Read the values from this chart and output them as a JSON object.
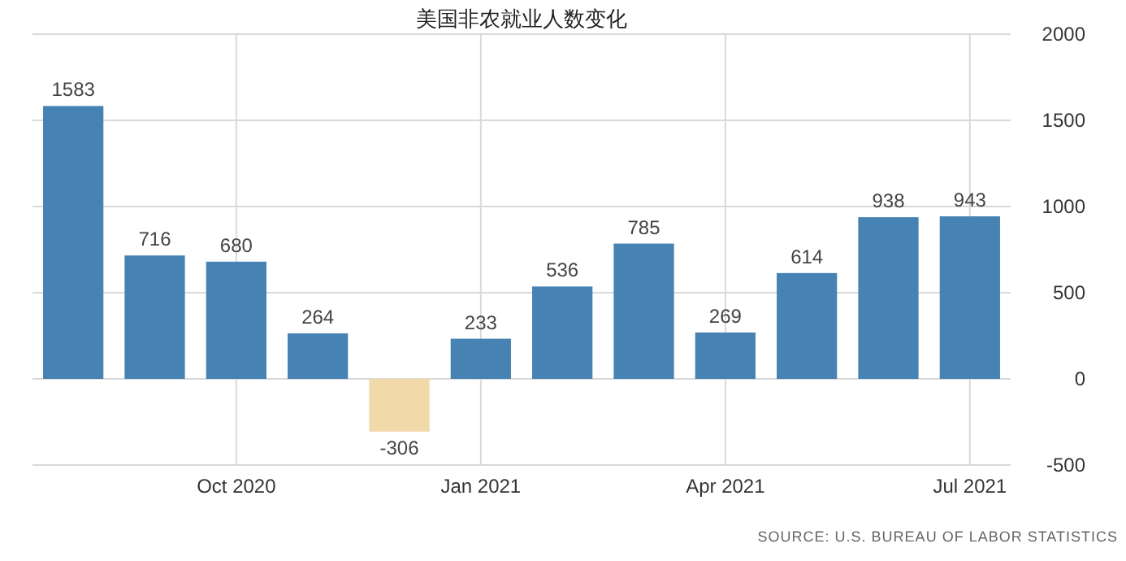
{
  "chart_data": {
    "type": "bar",
    "title": "美国非农就业人数变化",
    "categories": [
      null,
      null,
      "Oct 2020",
      null,
      null,
      "Jan 2021",
      null,
      null,
      "Apr 2021",
      null,
      null,
      "Jul 2021"
    ],
    "values": [
      1583,
      716,
      680,
      264,
      -306,
      233,
      536,
      785,
      269,
      614,
      938,
      943
    ],
    "colors": [
      "#4682b4",
      "#4682b4",
      "#4682b4",
      "#4682b4",
      "#f2d9a9",
      "#4682b4",
      "#4682b4",
      "#4682b4",
      "#4682b4",
      "#4682b4",
      "#4682b4",
      "#4682b4"
    ],
    "ylim": [
      -500,
      2000
    ],
    "yticks": [
      -500,
      0,
      500,
      1000,
      1500,
      2000
    ],
    "grid": true,
    "data_labels": true,
    "annotations": [
      "SOURCE: U.S. BUREAU OF LABOR STATISTICS"
    ]
  }
}
